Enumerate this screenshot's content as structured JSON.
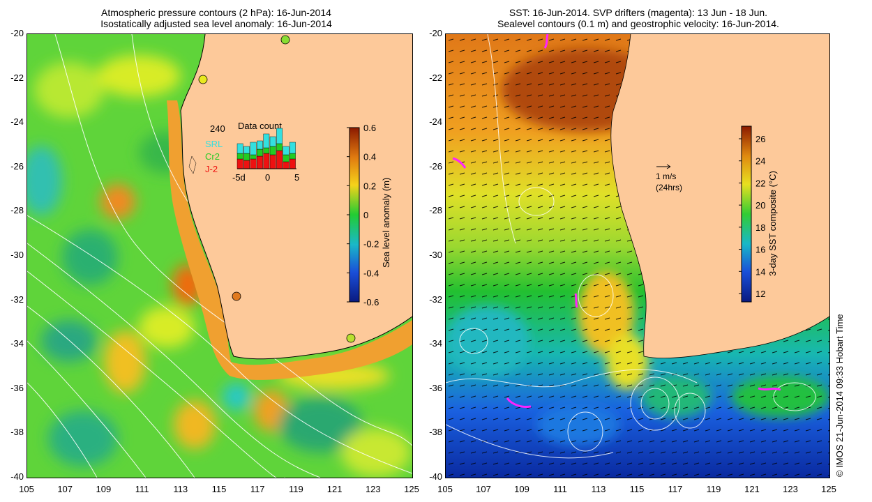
{
  "left_panel": {
    "title_line1": "Atmospheric pressure contours (2 hPa): 16-Jun-2014",
    "title_line2": "Isostatically adjusted sea level anomaly: 16-Jun-2014",
    "colorbar_label": "Sea level anomaly (m)",
    "colorbar_ticks": [
      "0.6",
      "0.4",
      "0.2",
      "0",
      "-0.2",
      "-0.4",
      "-0.6"
    ],
    "inset": {
      "title": "Data count",
      "max_label": "240",
      "legend": [
        {
          "name": "SRL",
          "color": "#33e0e0"
        },
        {
          "name": "Cr2",
          "color": "#22cc22"
        },
        {
          "name": "J-2",
          "color": "#ee1111"
        }
      ],
      "x_ticks": [
        "-5d",
        "0",
        "5"
      ]
    }
  },
  "right_panel": {
    "title_line1": "SST: 16-Jun-2014. SVP drifters (magenta): 13 Jun - 18 Jun.",
    "title_line2": "Sealevel contours (0.1 m) and geostrophic velocity: 16-Jun-2014.",
    "colorbar_label": "3-day SST composite (°C)",
    "colorbar_ticks": [
      "26",
      "24",
      "22",
      "20",
      "18",
      "16",
      "14",
      "12"
    ],
    "vector_key_line1": "1 m/s",
    "vector_key_line2": "(24hrs)"
  },
  "axes": {
    "x_ticks": [
      "105",
      "107",
      "109",
      "111",
      "113",
      "115",
      "117",
      "119",
      "121",
      "123",
      "125"
    ],
    "y_ticks": [
      "-20",
      "-22",
      "-24",
      "-26",
      "-28",
      "-30",
      "-32",
      "-34",
      "-36",
      "-38",
      "-40"
    ]
  },
  "copyright": "© IMOS 21-Jun-2014 09:33 Hobart Time",
  "colors": {
    "land": "#fdc99a",
    "sla_ramp": [
      "#8b1a00",
      "#e07a10",
      "#f5d21a",
      "#22cc33",
      "#1ab8c8",
      "#1a4fd8",
      "#0a1a80"
    ],
    "sst_ramp": [
      "#8b1a00",
      "#e08a10",
      "#e8e020",
      "#33cc33",
      "#18b8c8",
      "#1a4fd8",
      "#0a1a80"
    ],
    "drifter": "#ff22ff"
  }
}
